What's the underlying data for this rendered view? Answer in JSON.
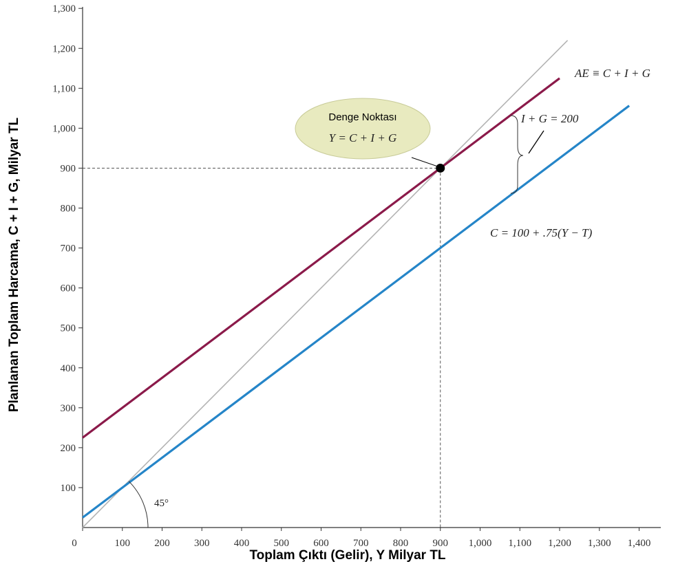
{
  "chart_data": {
    "type": "line",
    "xlabel": "Toplam Çıktı (Gelir), Y Milyar TL",
    "ylabel": "Planlanan Toplam Harcama, C + I + G, Milyar TL",
    "xlim": [
      0,
      1450
    ],
    "ylim": [
      0,
      1300
    ],
    "x_ticks": [
      "0",
      "100",
      "200",
      "300",
      "400",
      "500",
      "600",
      "700",
      "800",
      "900",
      "1,000",
      "1,100",
      "1,200",
      "1,300",
      "1,400"
    ],
    "y_ticks": [
      "100",
      "200",
      "300",
      "400",
      "500",
      "600",
      "700",
      "800",
      "900",
      "1,000",
      "1,100",
      "1,200",
      "1,300"
    ],
    "series": [
      {
        "name": "AE ≡ C + I + G",
        "color": "#8b1a4a",
        "x": [
          0,
          1200
        ],
        "y": [
          225,
          1125
        ]
      },
      {
        "name": "C = 100 + .75(Y − T)",
        "color": "#2585c8",
        "x": [
          0,
          1375
        ],
        "y": [
          25,
          1056.25
        ]
      },
      {
        "name": "45°",
        "color": "#b3b3b3",
        "x": [
          0,
          1220
        ],
        "y": [
          0,
          1220
        ]
      }
    ],
    "equilibrium": {
      "x": 900,
      "y": 900
    },
    "annotations": {
      "bubble_title": "Denge Noktası",
      "bubble_eq": "Y = C + I + G",
      "ae_label": "AE ≡ C + I + G",
      "ig_label": "I + G = 200",
      "c_label": "C = 100 + .75(Y − T)",
      "angle_label": "45°"
    },
    "grid": false
  }
}
